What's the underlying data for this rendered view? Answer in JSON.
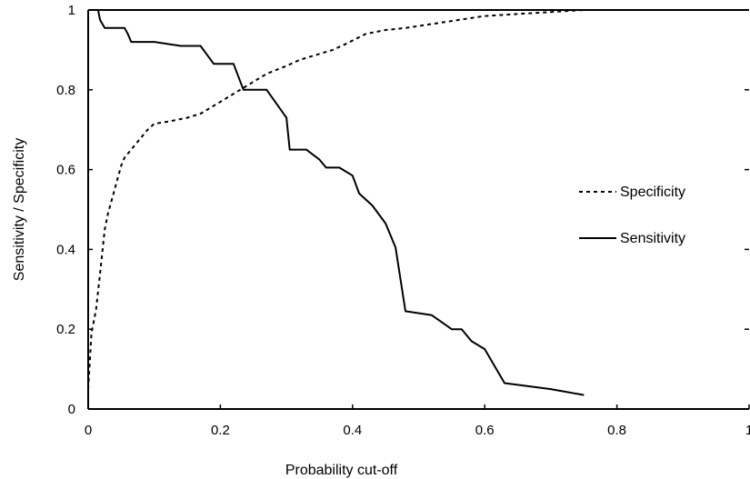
{
  "chart_data": {
    "type": "line",
    "title": "",
    "xlabel": "Probability cut-off",
    "ylabel": "Sensitivity / Specificity",
    "xlim": [
      0,
      1
    ],
    "ylim": [
      0,
      1
    ],
    "xticks": [
      "0",
      "0.2",
      "0.4",
      "0.6",
      "0.8",
      "1"
    ],
    "yticks": [
      "0",
      "0.2",
      "0.4",
      "0.6",
      "0.8",
      "1"
    ],
    "grid": false,
    "legend_position": "right",
    "series": [
      {
        "name": "Specificity",
        "style": "dashed",
        "color": "#000000",
        "points": [
          [
            0,
            0.05
          ],
          [
            0.005,
            0.19
          ],
          [
            0.012,
            0.25
          ],
          [
            0.018,
            0.34
          ],
          [
            0.025,
            0.45
          ],
          [
            0.03,
            0.49
          ],
          [
            0.04,
            0.55
          ],
          [
            0.05,
            0.61
          ],
          [
            0.055,
            0.63
          ],
          [
            0.065,
            0.65
          ],
          [
            0.075,
            0.67
          ],
          [
            0.09,
            0.7
          ],
          [
            0.1,
            0.715
          ],
          [
            0.12,
            0.72
          ],
          [
            0.15,
            0.73
          ],
          [
            0.17,
            0.74
          ],
          [
            0.19,
            0.76
          ],
          [
            0.21,
            0.78
          ],
          [
            0.23,
            0.8
          ],
          [
            0.25,
            0.82
          ],
          [
            0.27,
            0.84
          ],
          [
            0.3,
            0.86
          ],
          [
            0.32,
            0.875
          ],
          [
            0.35,
            0.89
          ],
          [
            0.37,
            0.9
          ],
          [
            0.39,
            0.915
          ],
          [
            0.42,
            0.94
          ],
          [
            0.45,
            0.95
          ],
          [
            0.48,
            0.955
          ],
          [
            0.52,
            0.965
          ],
          [
            0.56,
            0.975
          ],
          [
            0.6,
            0.985
          ],
          [
            0.65,
            0.99
          ],
          [
            0.7,
            0.995
          ],
          [
            0.75,
            1.0
          ]
        ]
      },
      {
        "name": "Sensitivity",
        "style": "solid",
        "color": "#000000",
        "points": [
          [
            0,
            1.0
          ],
          [
            0.015,
            1.0
          ],
          [
            0.018,
            0.975
          ],
          [
            0.025,
            0.955
          ],
          [
            0.055,
            0.955
          ],
          [
            0.06,
            0.94
          ],
          [
            0.065,
            0.92
          ],
          [
            0.1,
            0.92
          ],
          [
            0.14,
            0.91
          ],
          [
            0.17,
            0.91
          ],
          [
            0.19,
            0.865
          ],
          [
            0.22,
            0.865
          ],
          [
            0.235,
            0.8
          ],
          [
            0.27,
            0.8
          ],
          [
            0.3,
            0.73
          ],
          [
            0.305,
            0.65
          ],
          [
            0.33,
            0.65
          ],
          [
            0.35,
            0.625
          ],
          [
            0.36,
            0.605
          ],
          [
            0.38,
            0.605
          ],
          [
            0.4,
            0.585
          ],
          [
            0.41,
            0.54
          ],
          [
            0.43,
            0.51
          ],
          [
            0.45,
            0.465
          ],
          [
            0.465,
            0.405
          ],
          [
            0.48,
            0.245
          ],
          [
            0.52,
            0.235
          ],
          [
            0.55,
            0.2
          ],
          [
            0.565,
            0.2
          ],
          [
            0.58,
            0.17
          ],
          [
            0.6,
            0.15
          ],
          [
            0.63,
            0.065
          ],
          [
            0.7,
            0.05
          ],
          [
            0.75,
            0.035
          ]
        ]
      }
    ]
  }
}
